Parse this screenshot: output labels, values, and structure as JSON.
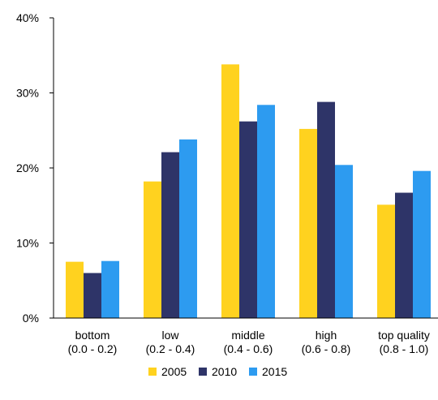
{
  "chart_data": {
    "type": "bar",
    "categories": [
      [
        "bottom",
        "(0.0 - 0.2)"
      ],
      [
        "low",
        "(0.2 - 0.4)"
      ],
      [
        "middle",
        "(0.4 - 0.6)"
      ],
      [
        "high",
        "(0.6 - 0.8)"
      ],
      [
        "top quality",
        "(0.8 - 1.0)"
      ]
    ],
    "series": [
      {
        "name": "2005",
        "color": "#FFD21F",
        "values": [
          7.5,
          18.2,
          33.8,
          25.2,
          15.1
        ]
      },
      {
        "name": "2010",
        "color": "#2E3468",
        "values": [
          6.0,
          22.1,
          26.2,
          28.8,
          16.7
        ]
      },
      {
        "name": "2015",
        "color": "#2D9BF0",
        "values": [
          7.6,
          23.8,
          28.4,
          20.4,
          19.6
        ]
      }
    ],
    "ylim": [
      0,
      40
    ],
    "yticks": [
      0,
      10,
      20,
      30,
      40
    ],
    "ytick_labels": [
      "0%",
      "10%",
      "20%",
      "30%",
      "40%"
    ],
    "grid": false,
    "legend_position": "bottom-center"
  }
}
